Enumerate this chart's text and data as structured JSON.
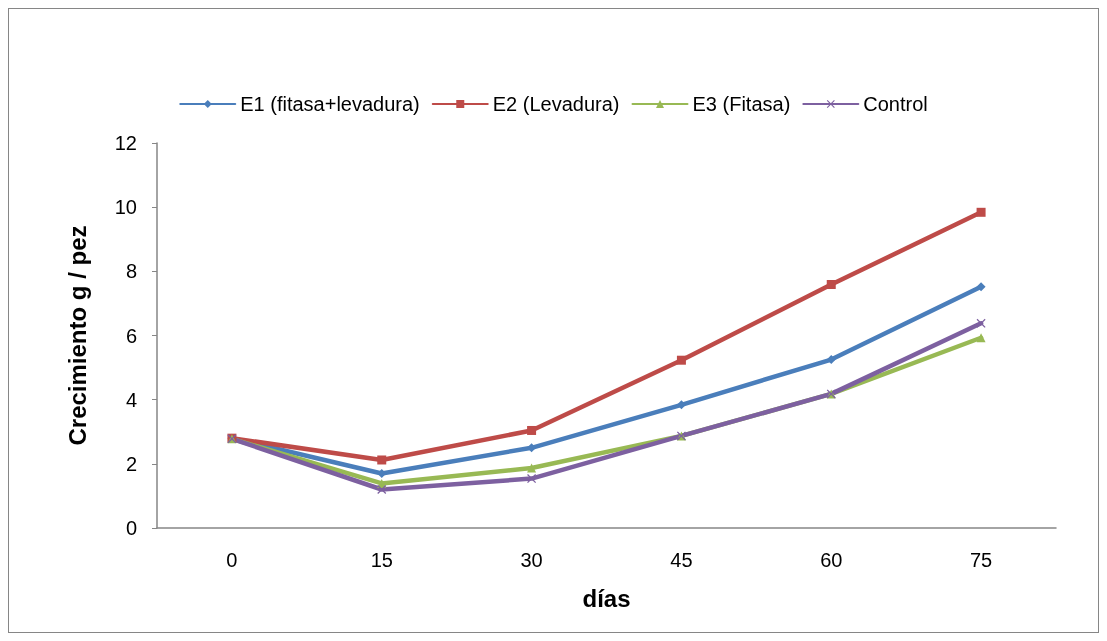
{
  "chart_data": {
    "type": "line",
    "xlabel": "días",
    "ylabel": "Crecimiento g / pez",
    "categories": [
      "0",
      "15",
      "30",
      "45",
      "60",
      "75"
    ],
    "series": [
      {
        "name": "E1 (fitasa+levadura)",
        "color": "#4a7ebb",
        "marker": "diamond",
        "values": [
          2.8,
          1.7,
          2.5,
          3.84,
          5.25,
          7.52
        ]
      },
      {
        "name": "E2 (Levadura)",
        "color": "#be4b48",
        "marker": "square",
        "values": [
          2.8,
          2.12,
          3.04,
          5.23,
          7.59,
          9.84
        ]
      },
      {
        "name": "E3 (Fitasa)",
        "color": "#98b954",
        "marker": "triangle",
        "values": [
          2.78,
          1.39,
          1.87,
          2.87,
          4.18,
          5.93
        ]
      },
      {
        "name": "Control",
        "color": "#7d60a0",
        "marker": "cross",
        "values": [
          2.78,
          1.2,
          1.54,
          2.87,
          4.18,
          6.38
        ]
      }
    ],
    "ylim": [
      0,
      12
    ],
    "yticks": [
      0,
      2,
      4,
      6,
      8,
      10,
      12
    ],
    "grid": false,
    "legend": "top",
    "line_style": "solid"
  }
}
